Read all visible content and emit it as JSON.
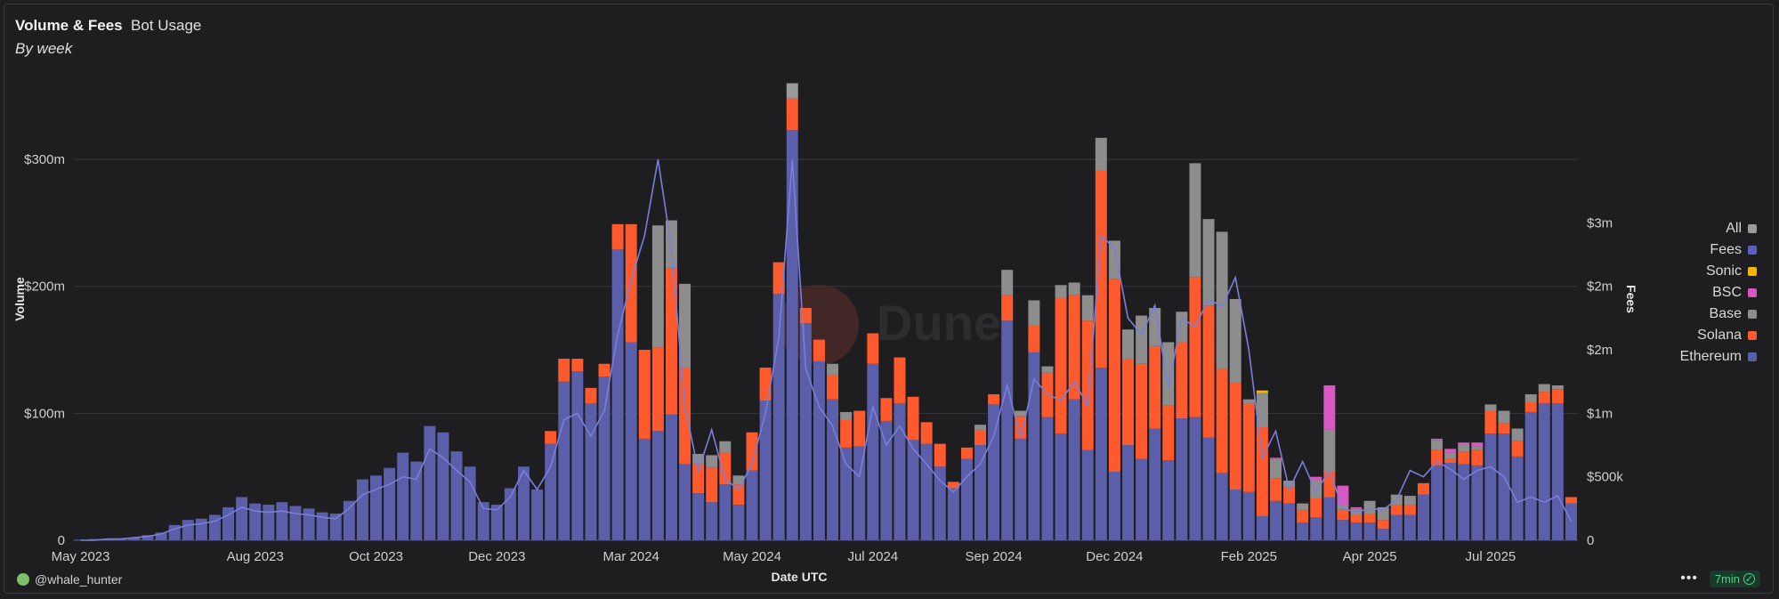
{
  "header": {
    "title": "Volume & Fees",
    "tab": "Bot Usage",
    "subtitle": "By week"
  },
  "footer": {
    "user": "@whale_hunter",
    "refresh": "7min",
    "more_icon": "ellipsis-icon",
    "user_icon": "avatar-icon",
    "refresh_icon": "check-circle-icon"
  },
  "watermark": "Dune",
  "chart_data": {
    "type": "bar",
    "stacked": true,
    "title": "Volume & Fees",
    "xlabel": "Date UTC",
    "ylabel": "Volume",
    "y2label": "Fees",
    "ylim": [
      0,
      380
    ],
    "y2lim": [
      0,
      3.8
    ],
    "yticks": [
      {
        "v": 0,
        "label": "0"
      },
      {
        "v": 100,
        "label": "$100m"
      },
      {
        "v": 200,
        "label": "$200m"
      },
      {
        "v": 300,
        "label": "$300m"
      }
    ],
    "y2ticks": [
      {
        "v": 0,
        "label": "0"
      },
      {
        "v": 0.5,
        "label": "$500k"
      },
      {
        "v": 1,
        "label": "$1m"
      },
      {
        "v": 1.5,
        "label": "$2m"
      },
      {
        "v": 2,
        "label": "$2m"
      },
      {
        "v": 2.5,
        "label": "$3m"
      }
    ],
    "xticks": [
      {
        "i": 0,
        "label": "May 2023"
      },
      {
        "i": 13,
        "label": "Aug 2023"
      },
      {
        "i": 22,
        "label": "Oct 2023"
      },
      {
        "i": 31,
        "label": "Dec 2023"
      },
      {
        "i": 41,
        "label": "Mar 2024"
      },
      {
        "i": 50,
        "label": "May 2024"
      },
      {
        "i": 59,
        "label": "Jul 2024"
      },
      {
        "i": 68,
        "label": "Sep 2024"
      },
      {
        "i": 77,
        "label": "Dec 2024"
      },
      {
        "i": 87,
        "label": "Feb 2025"
      },
      {
        "i": 96,
        "label": "Apr 2025"
      },
      {
        "i": 105,
        "label": "Jul 2025"
      }
    ],
    "legend": [
      {
        "name": "All",
        "color": "#9a9a9a"
      },
      {
        "name": "Fees",
        "color": "#5a5fc4"
      },
      {
        "name": "Sonic",
        "color": "#f5b400"
      },
      {
        "name": "BSC",
        "color": "#d957c1"
      },
      {
        "name": "Base",
        "color": "#8d8d8d"
      },
      {
        "name": "Solana",
        "color": "#ff5a2e"
      },
      {
        "name": "Ethereum",
        "color": "#5b5ea8"
      }
    ],
    "series": [
      {
        "name": "Ethereum",
        "color": "#5b5ea8",
        "values": [
          0.5,
          1,
          1,
          1,
          2,
          4,
          6,
          12,
          16,
          17,
          20,
          26,
          34,
          29,
          28,
          30,
          27,
          25,
          22,
          21,
          31,
          48,
          51,
          57,
          69,
          62,
          90,
          85,
          70,
          58,
          30,
          28,
          41,
          58,
          40,
          76,
          125,
          133,
          108,
          129,
          229,
          156,
          80,
          86,
          99,
          60,
          37,
          30,
          44,
          28,
          55,
          110,
          194,
          323,
          171,
          141,
          111,
          73,
          74,
          139,
          94,
          108,
          79,
          76,
          58,
          41,
          64,
          75,
          107,
          173,
          80,
          148,
          97,
          84,
          111,
          71,
          136,
          54,
          75,
          64,
          88,
          63,
          96,
          97,
          81,
          53,
          40,
          38,
          19,
          31,
          29,
          14,
          18,
          34,
          16,
          14,
          14,
          9,
          20,
          20,
          36,
          59,
          61,
          60,
          59,
          84,
          84,
          66,
          101,
          108,
          108,
          29
        ],
        "base": [
          0,
          0,
          0,
          0,
          0,
          0,
          0,
          0,
          0,
          0,
          0,
          0,
          0,
          0,
          0,
          0,
          0,
          0,
          0,
          0,
          0,
          0,
          0,
          0,
          0,
          0,
          0,
          0,
          0,
          0,
          0,
          0,
          0,
          0,
          0,
          0,
          0,
          0,
          0,
          0,
          0,
          0,
          0,
          0,
          0,
          0,
          0,
          0,
          0,
          0,
          0,
          0,
          0,
          0,
          0,
          0,
          0,
          0,
          0,
          0,
          0,
          0,
          0,
          0,
          0,
          0,
          0,
          0,
          0,
          0,
          0,
          0,
          0,
          0,
          0,
          0,
          0,
          0,
          0,
          0,
          0,
          0,
          0,
          0,
          0,
          0,
          0,
          0,
          0,
          0,
          0,
          0,
          0,
          0,
          0,
          0,
          0,
          0,
          0,
          0,
          0,
          0,
          0,
          0,
          0,
          0,
          0,
          0,
          0,
          0,
          0,
          0
        ]
      },
      {
        "name": "Solana",
        "color": "#ff5a2e",
        "values": [
          0,
          0,
          0,
          0,
          0,
          0,
          0,
          0,
          0,
          0,
          0,
          0,
          0,
          0,
          0,
          0,
          0,
          0,
          0,
          0,
          0,
          0,
          0,
          0,
          0,
          0,
          0,
          0,
          0,
          0,
          0,
          0,
          0,
          0,
          0,
          10,
          18,
          10,
          12,
          10,
          20,
          93,
          70,
          66,
          115,
          76,
          23,
          27,
          25,
          16,
          30,
          26,
          25,
          25,
          12,
          17,
          19,
          22,
          28,
          24,
          18,
          36,
          34,
          17,
          18,
          5,
          9,
          12,
          8,
          20,
          18,
          21,
          35,
          107,
          82,
          102,
          155,
          152,
          68,
          75,
          65,
          43,
          60,
          110,
          104,
          82,
          84,
          70,
          70,
          18,
          13,
          10,
          15,
          20,
          8,
          6,
          7,
          7,
          8,
          8,
          9,
          12,
          3,
          10,
          12,
          18,
          8,
          12,
          8,
          9,
          11,
          5
        ]
      },
      {
        "name": "Base",
        "color": "#8d8d8d",
        "values": [
          0,
          0,
          0,
          0,
          0,
          0,
          0,
          0,
          0,
          0,
          0,
          0,
          0,
          0,
          0,
          0,
          0,
          0,
          0,
          0,
          0,
          0,
          0,
          0,
          0,
          0,
          0,
          0,
          0,
          0,
          0,
          0,
          0,
          0,
          0,
          0,
          0,
          0,
          0,
          0,
          0,
          0,
          0,
          96,
          38,
          66,
          8,
          10,
          9,
          7,
          0,
          0,
          0,
          0,
          0,
          0,
          9,
          6,
          0,
          0,
          0,
          0,
          0,
          0,
          0,
          0,
          0,
          4,
          0,
          20,
          4,
          20,
          5,
          10,
          10,
          20,
          26,
          30,
          23,
          38,
          30,
          50,
          24,
          90,
          68,
          108,
          66,
          3,
          27,
          15,
          5,
          5,
          14,
          33,
          4,
          5,
          10,
          10,
          8,
          7,
          0,
          8,
          5,
          5,
          3,
          5,
          10,
          10,
          6,
          6,
          3,
          0
        ]
      },
      {
        "name": "BSC",
        "color": "#d957c1",
        "values": [
          0,
          0,
          0,
          0,
          0,
          0,
          0,
          0,
          0,
          0,
          0,
          0,
          0,
          0,
          0,
          0,
          0,
          0,
          0,
          0,
          0,
          0,
          0,
          0,
          0,
          0,
          0,
          0,
          0,
          0,
          0,
          0,
          0,
          0,
          0,
          0,
          0,
          0,
          0,
          0,
          0,
          0,
          0,
          0,
          0,
          0,
          0,
          0,
          0,
          0,
          0,
          0,
          0,
          0,
          0,
          0,
          0,
          0,
          0,
          0,
          0,
          0,
          0,
          0,
          0,
          0,
          0,
          0,
          0,
          0,
          0,
          0,
          0,
          0,
          0,
          0,
          0,
          0,
          0,
          0,
          0,
          0,
          0,
          0,
          0,
          0,
          0,
          0,
          0,
          1,
          0,
          0,
          3,
          35,
          15,
          1,
          0,
          0,
          0,
          0,
          0,
          1,
          3,
          2,
          3,
          0,
          0,
          0,
          0,
          0,
          0,
          0
        ]
      },
      {
        "name": "Sonic",
        "color": "#f5b400",
        "values": [
          0,
          0,
          0,
          0,
          0,
          0,
          0,
          0,
          0,
          0,
          0,
          0,
          0,
          0,
          0,
          0,
          0,
          0,
          0,
          0,
          0,
          0,
          0,
          0,
          0,
          0,
          0,
          0,
          0,
          0,
          0,
          0,
          0,
          0,
          0,
          0,
          0,
          0,
          0,
          0,
          0,
          0,
          0,
          0,
          0,
          0,
          0,
          0,
          0,
          0,
          0,
          0,
          0,
          0,
          0,
          0,
          0,
          0,
          0,
          0,
          0,
          0,
          0,
          0,
          0,
          0,
          0,
          0,
          0,
          0,
          0,
          0,
          0,
          0,
          0,
          0,
          0,
          0,
          0,
          0,
          0,
          0,
          0,
          0,
          0,
          0,
          0,
          0,
          2,
          0,
          0,
          0,
          0,
          0,
          0,
          0,
          0,
          0,
          0,
          0,
          0,
          0,
          0,
          0,
          0,
          0,
          0,
          0,
          0,
          0,
          0,
          0
        ]
      },
      {
        "name": "All",
        "color": "#9a9a9a",
        "values": [
          0,
          0,
          0,
          0,
          0,
          0,
          0,
          0,
          0,
          0,
          0,
          0,
          0,
          0,
          0,
          0,
          0,
          0,
          0,
          0,
          0,
          0,
          0,
          0,
          0,
          0,
          0,
          0,
          0,
          0,
          0,
          0,
          0,
          0,
          0,
          0,
          0,
          0,
          0,
          0,
          0,
          0,
          0,
          0,
          0,
          0,
          0,
          0,
          0,
          0,
          0,
          0,
          0,
          12,
          0,
          0,
          0,
          0,
          0,
          0,
          0,
          0,
          0,
          0,
          0,
          0,
          0,
          0,
          0,
          0,
          0,
          0,
          0,
          0,
          0,
          0,
          0,
          0,
          0,
          0,
          0,
          0,
          0,
          0,
          0,
          0,
          0,
          0,
          0,
          0,
          0,
          0,
          0,
          0,
          0,
          0,
          0,
          0,
          0,
          0,
          0,
          0,
          0,
          0,
          0,
          0,
          0,
          0,
          0,
          0,
          0,
          0
        ]
      }
    ],
    "fees_line": {
      "name": "Fees",
      "color": "#7a7fd9",
      "values": [
        0,
        0,
        0.01,
        0.01,
        0.02,
        0.03,
        0.05,
        0.09,
        0.12,
        0.13,
        0.15,
        0.2,
        0.26,
        0.23,
        0.22,
        0.23,
        0.21,
        0.2,
        0.18,
        0.17,
        0.25,
        0.36,
        0.4,
        0.44,
        0.5,
        0.48,
        0.72,
        0.65,
        0.55,
        0.46,
        0.25,
        0.24,
        0.34,
        0.55,
        0.4,
        0.58,
        0.95,
        1.0,
        0.82,
        1.02,
        1.62,
        2.05,
        2.4,
        3.0,
        2.3,
        1.05,
        0.55,
        0.87,
        0.48,
        0.4,
        0.6,
        1.0,
        1.6,
        3.0,
        1.35,
        1.05,
        0.9,
        0.6,
        0.5,
        1.05,
        0.75,
        0.9,
        0.72,
        0.6,
        0.47,
        0.38,
        0.5,
        0.6,
        0.82,
        1.22,
        0.8,
        1.27,
        1.15,
        1.1,
        1.25,
        1.06,
        2.4,
        2.3,
        1.75,
        1.62,
        1.85,
        1.2,
        1.75,
        1.68,
        1.9,
        1.84,
        2.07,
        1.5,
        0.65,
        0.86,
        0.4,
        0.62,
        0.38,
        0.55,
        0.25,
        0.22,
        0.25,
        0.24,
        0.32,
        0.55,
        0.5,
        0.62,
        0.56,
        0.48,
        0.55,
        0.58,
        0.5,
        0.3,
        0.34,
        0.3,
        0.35,
        0.15
      ]
    }
  }
}
